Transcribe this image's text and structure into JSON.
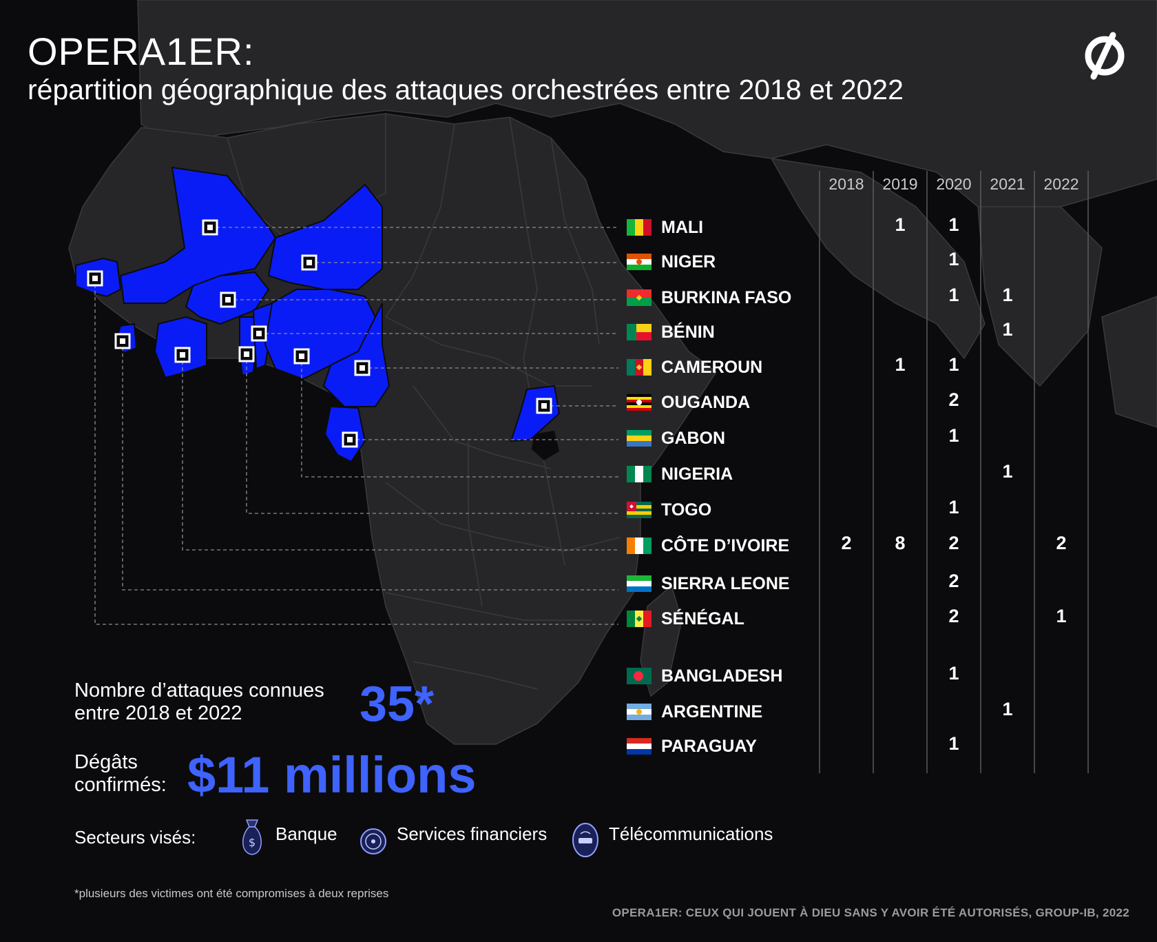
{
  "header": {
    "title": "OPERA1ER:",
    "subtitle": "répartition géographique des attaques orchestrées entre 2018 et 2022"
  },
  "table": {
    "years": [
      "2018",
      "2019",
      "2020",
      "2021",
      "2022"
    ],
    "countries": [
      {
        "name": "MALI",
        "flag": "mali-flag",
        "counts": [
          "",
          "1",
          "1",
          "",
          ""
        ]
      },
      {
        "name": "NIGER",
        "flag": "niger-flag",
        "counts": [
          "",
          "",
          "1",
          "",
          ""
        ]
      },
      {
        "name": "BURKINA FASO",
        "flag": "burkina-faso-flag",
        "counts": [
          "",
          "",
          "1",
          "1",
          ""
        ]
      },
      {
        "name": "BÉNIN",
        "flag": "benin-flag",
        "counts": [
          "",
          "",
          "",
          "1",
          ""
        ]
      },
      {
        "name": "CAMEROUN",
        "flag": "cameroon-flag",
        "counts": [
          "",
          "1",
          "1",
          "",
          ""
        ]
      },
      {
        "name": "OUGANDA",
        "flag": "uganda-flag",
        "counts": [
          "",
          "",
          "2",
          "",
          ""
        ]
      },
      {
        "name": "GABON",
        "flag": "gabon-flag",
        "counts": [
          "",
          "",
          "1",
          "",
          ""
        ]
      },
      {
        "name": "NIGERIA",
        "flag": "nigeria-flag",
        "counts": [
          "",
          "",
          "",
          "1",
          ""
        ]
      },
      {
        "name": "TOGO",
        "flag": "togo-flag",
        "counts": [
          "",
          "",
          "1",
          "",
          ""
        ]
      },
      {
        "name": "CÔTE D’IVOIRE",
        "flag": "cote-divoire-flag",
        "counts": [
          "2",
          "8",
          "2",
          "",
          "2"
        ]
      },
      {
        "name": "SIERRA LEONE",
        "flag": "sierra-leone-flag",
        "counts": [
          "",
          "",
          "2",
          "",
          ""
        ]
      },
      {
        "name": "SÉNÉGAL",
        "flag": "senegal-flag",
        "counts": [
          "",
          "",
          "2",
          "",
          "1"
        ]
      },
      {
        "name": "BANGLADESH",
        "flag": "bangladesh-flag",
        "counts": [
          "",
          "",
          "1",
          "",
          ""
        ]
      },
      {
        "name": "ARGENTINE",
        "flag": "argentina-flag",
        "counts": [
          "",
          "",
          "",
          "1",
          ""
        ]
      },
      {
        "name": "PARAGUAY",
        "flag": "paraguay-flag",
        "counts": [
          "",
          "",
          "1",
          "",
          ""
        ]
      }
    ]
  },
  "stats": {
    "attacks_label_1": "Nombre d’attaques connues",
    "attacks_label_2": "entre 2018 et 2022",
    "attacks_value": "35*",
    "damage_label_1": "Dégâts",
    "damage_label_2": "confirmés:",
    "damage_value": "$11 millions"
  },
  "sectors": {
    "label": "Secteurs visés:",
    "items": [
      {
        "label": "Banque",
        "icon": "money-bag-icon"
      },
      {
        "label": "Services financiers",
        "icon": "coin-icon"
      },
      {
        "label": "Télécommunications",
        "icon": "phone-icon"
      }
    ]
  },
  "footnote": "*plusieurs des victimes ont été compromises à deux reprises",
  "credit": "OPERA1ER: CEUX QUI JOUENT À DIEU SANS Y AVOIR ÉTÉ AUTORISÉS, GROUP-IB, 2022",
  "colors": {
    "highlight": "#0a1cf5",
    "accent_text": "#3f63ff",
    "land": "#262628",
    "background": "#0b0b0d"
  }
}
